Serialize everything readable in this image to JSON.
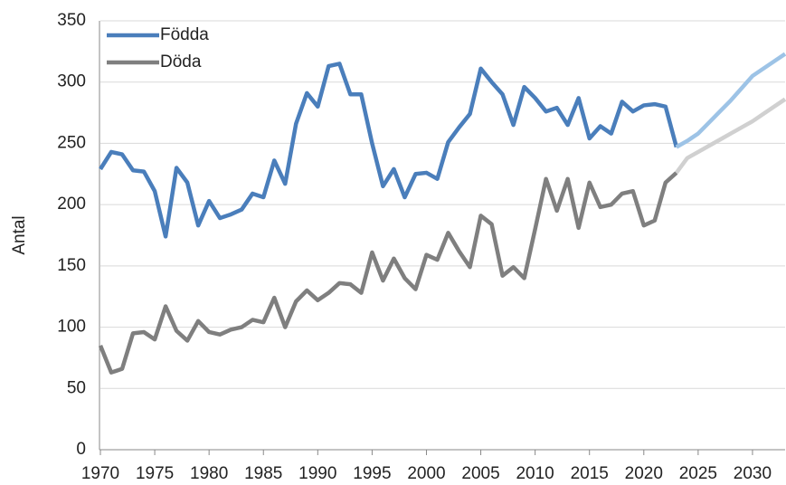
{
  "chart_data": {
    "type": "line",
    "y_label": "Antal",
    "x": [
      1970,
      1971,
      1972,
      1973,
      1974,
      1975,
      1976,
      1977,
      1978,
      1979,
      1980,
      1981,
      1982,
      1983,
      1984,
      1985,
      1986,
      1987,
      1988,
      1989,
      1990,
      1991,
      1992,
      1993,
      1994,
      1995,
      1996,
      1997,
      1998,
      1999,
      2000,
      2001,
      2002,
      2003,
      2004,
      2005,
      2006,
      2007,
      2008,
      2009,
      2010,
      2011,
      2012,
      2013,
      2014,
      2015,
      2016,
      2017,
      2018,
      2019,
      2020,
      2021,
      2022,
      2023,
      2024,
      2025,
      2026,
      2027,
      2028,
      2029,
      2030,
      2031,
      2032,
      2033
    ],
    "series": [
      {
        "name": "Födda",
        "color": "#4a7ebb",
        "forecast_color": "#9dc3e6",
        "values": [
          229,
          243,
          241,
          228,
          227,
          211,
          174,
          230,
          218,
          183,
          203,
          189,
          192,
          196,
          209,
          206,
          236,
          217,
          266,
          291,
          280,
          313,
          315,
          290,
          290,
          250,
          215,
          229,
          206,
          225,
          226,
          221,
          251,
          263,
          274,
          311,
          300,
          290,
          265,
          296,
          287,
          276,
          279,
          265,
          287,
          254,
          264,
          258,
          284,
          276,
          281,
          282,
          280,
          247,
          null,
          null,
          null,
          null,
          null,
          null,
          null,
          null,
          null,
          null
        ],
        "forecast_values": [
          null,
          null,
          null,
          null,
          null,
          null,
          null,
          null,
          null,
          null,
          null,
          null,
          null,
          null,
          null,
          null,
          null,
          null,
          null,
          null,
          null,
          null,
          null,
          null,
          null,
          null,
          null,
          null,
          null,
          null,
          null,
          null,
          null,
          null,
          null,
          null,
          null,
          null,
          null,
          null,
          null,
          null,
          null,
          null,
          null,
          null,
          null,
          null,
          null,
          null,
          null,
          null,
          null,
          247,
          252,
          258,
          267,
          276,
          285,
          295,
          305,
          311,
          317,
          323
        ]
      },
      {
        "name": "Döda",
        "color": "#7f7f7f",
        "forecast_color": "#d0d0d0",
        "values": [
          85,
          63,
          66,
          95,
          96,
          90,
          117,
          97,
          89,
          105,
          96,
          94,
          98,
          100,
          106,
          104,
          124,
          100,
          121,
          130,
          122,
          128,
          136,
          135,
          128,
          161,
          138,
          156,
          140,
          131,
          159,
          155,
          177,
          162,
          149,
          191,
          184,
          142,
          149,
          140,
          180,
          221,
          195,
          221,
          181,
          218,
          198,
          200,
          209,
          211,
          183,
          187,
          218,
          226,
          null,
          null,
          null,
          null,
          null,
          null,
          null,
          null,
          null,
          null
        ],
        "forecast_values": [
          null,
          null,
          null,
          null,
          null,
          null,
          null,
          null,
          null,
          null,
          null,
          null,
          null,
          null,
          null,
          null,
          null,
          null,
          null,
          null,
          null,
          null,
          null,
          null,
          null,
          null,
          null,
          null,
          null,
          null,
          null,
          null,
          null,
          null,
          null,
          null,
          null,
          null,
          null,
          null,
          null,
          null,
          null,
          null,
          null,
          null,
          null,
          null,
          null,
          null,
          null,
          null,
          null,
          226,
          238,
          243,
          248,
          253,
          258,
          263,
          268,
          274,
          280,
          286
        ]
      }
    ],
    "xlim": [
      1970,
      2033
    ],
    "xticks": [
      1970,
      1975,
      1980,
      1985,
      1990,
      1995,
      2000,
      2005,
      2010,
      2015,
      2020,
      2025,
      2030
    ],
    "ylim": [
      0,
      350
    ],
    "yticks": [
      0,
      50,
      100,
      150,
      200,
      250,
      300,
      350
    ],
    "grid": true,
    "legend": "top-left"
  }
}
